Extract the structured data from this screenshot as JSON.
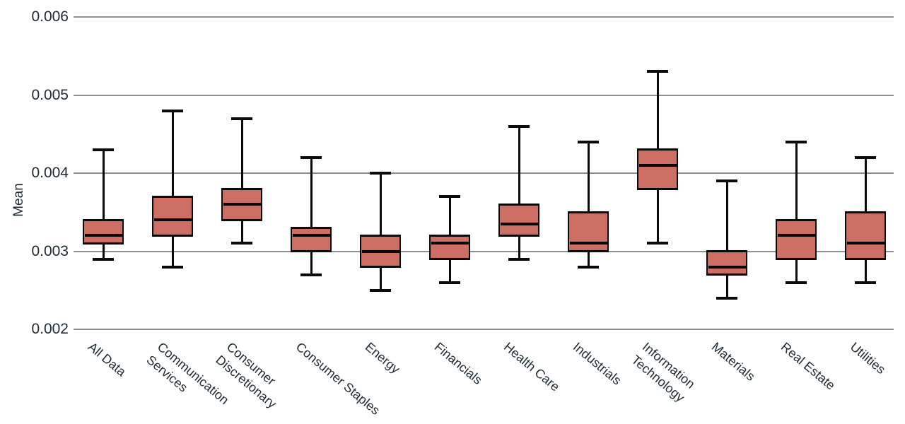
{
  "chart_data": {
    "type": "box",
    "title": "",
    "xlabel": "",
    "ylabel": "Mean",
    "ylim": [
      0.002,
      0.006
    ],
    "grid": "horizontal",
    "legend": "none",
    "colors": {
      "box_fill": "#cd6e64",
      "box_line": "#0a0a0a",
      "gridline": "#8f8f8f",
      "text": "#1e2a32"
    },
    "yticks": {
      "values": [
        0.006,
        0.005,
        0.004,
        0.003,
        0.002
      ],
      "labels": [
        "0.006",
        "0.005",
        "0.004",
        "0.003",
        "0.002"
      ]
    },
    "categories": [
      "All Data",
      "Communication\nServices",
      "Consumer\nDiscretionary",
      "Consumer Staples",
      "Energy",
      "Financials",
      "Health Care",
      "Industrials",
      "Information\nTechnology",
      "Materials",
      "Real Estate",
      "Utilities"
    ],
    "boxes": [
      {
        "category": "All Data",
        "whisker_low": 0.0029,
        "q1": 0.0031,
        "median": 0.0032,
        "q3": 0.0034,
        "whisker_high": 0.0043
      },
      {
        "category": "Communication Services",
        "whisker_low": 0.0028,
        "q1": 0.0032,
        "median": 0.0034,
        "q3": 0.0037,
        "whisker_high": 0.0048
      },
      {
        "category": "Consumer Discretionary",
        "whisker_low": 0.0031,
        "q1": 0.0034,
        "median": 0.0036,
        "q3": 0.0038,
        "whisker_high": 0.0047
      },
      {
        "category": "Consumer Staples",
        "whisker_low": 0.0027,
        "q1": 0.003,
        "median": 0.0032,
        "q3": 0.0033,
        "whisker_high": 0.0042
      },
      {
        "category": "Energy",
        "whisker_low": 0.0025,
        "q1": 0.0028,
        "median": 0.003,
        "q3": 0.0032,
        "whisker_high": 0.004
      },
      {
        "category": "Financials",
        "whisker_low": 0.0026,
        "q1": 0.0029,
        "median": 0.0031,
        "q3": 0.0032,
        "whisker_high": 0.0037
      },
      {
        "category": "Health Care",
        "whisker_low": 0.0029,
        "q1": 0.0032,
        "median": 0.00335,
        "q3": 0.0036,
        "whisker_high": 0.0046
      },
      {
        "category": "Industrials",
        "whisker_low": 0.0028,
        "q1": 0.003,
        "median": 0.0031,
        "q3": 0.0035,
        "whisker_high": 0.0044
      },
      {
        "category": "Information Technology",
        "whisker_low": 0.0031,
        "q1": 0.0038,
        "median": 0.0041,
        "q3": 0.0043,
        "whisker_high": 0.0053
      },
      {
        "category": "Materials",
        "whisker_low": 0.0024,
        "q1": 0.0027,
        "median": 0.0028,
        "q3": 0.003,
        "whisker_high": 0.0039
      },
      {
        "category": "Real Estate",
        "whisker_low": 0.0026,
        "q1": 0.0029,
        "median": 0.0032,
        "q3": 0.0034,
        "whisker_high": 0.0044
      },
      {
        "category": "Utilities",
        "whisker_low": 0.0026,
        "q1": 0.0029,
        "median": 0.0031,
        "q3": 0.0035,
        "whisker_high": 0.0042
      }
    ]
  }
}
